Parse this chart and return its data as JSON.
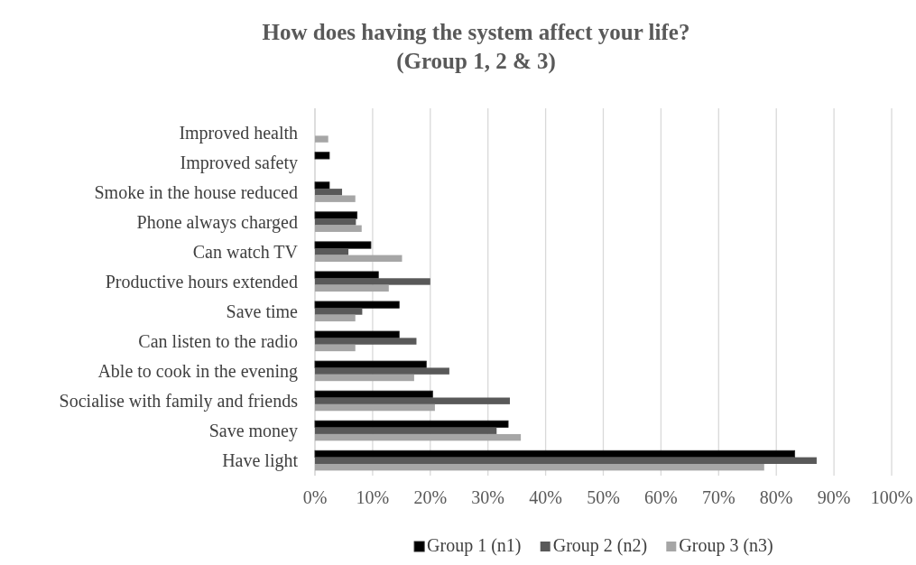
{
  "chart_data": {
    "type": "bar",
    "orientation": "horizontal",
    "title": "How does having the system affect your life?\n(Group 1, 2 & 3)",
    "categories": [
      "Improved health",
      "Improved safety",
      "Smoke in the house reduced",
      "Phone always charged",
      "Can watch TV",
      "Productive hours extended",
      "Save time",
      "Can listen to the radio",
      "Able to cook in the evening",
      "Socialise with family and friends",
      "Save money",
      "Have light"
    ],
    "series": [
      {
        "name": "Group 1 (n1)",
        "color": "#000000",
        "values": [
          null,
          2.5,
          2.5,
          7.3,
          9.7,
          11,
          14.6,
          14.6,
          19.3,
          20.4,
          33.5,
          83.2
        ]
      },
      {
        "name": "Group 2 (n2)",
        "color": "#595959",
        "values": [
          null,
          null,
          4.7,
          7.1,
          5.8,
          20,
          8.2,
          17.6,
          23.3,
          33.8,
          31.5,
          87
        ]
      },
      {
        "name": "Group 3 (n3)",
        "color": "#a6a6a6",
        "values": [
          2.3,
          null,
          7,
          8.1,
          15.1,
          12.8,
          7,
          7,
          17.2,
          20.8,
          35.7,
          77.9
        ]
      }
    ],
    "xlim": [
      0,
      100
    ],
    "xticks": [
      {
        "value": 0,
        "label": "0%"
      },
      {
        "value": 10,
        "label": "10%"
      },
      {
        "value": 20,
        "label": "20%"
      },
      {
        "value": 30,
        "label": "30%"
      },
      {
        "value": 40,
        "label": "40%"
      },
      {
        "value": 50,
        "label": "50%"
      },
      {
        "value": 60,
        "label": "60%"
      },
      {
        "value": 70,
        "label": "70%"
      },
      {
        "value": 80,
        "label": "80%"
      },
      {
        "value": 90,
        "label": "90%"
      },
      {
        "value": 100,
        "label": "100%"
      }
    ],
    "grid": "x",
    "legend": "bottom"
  }
}
